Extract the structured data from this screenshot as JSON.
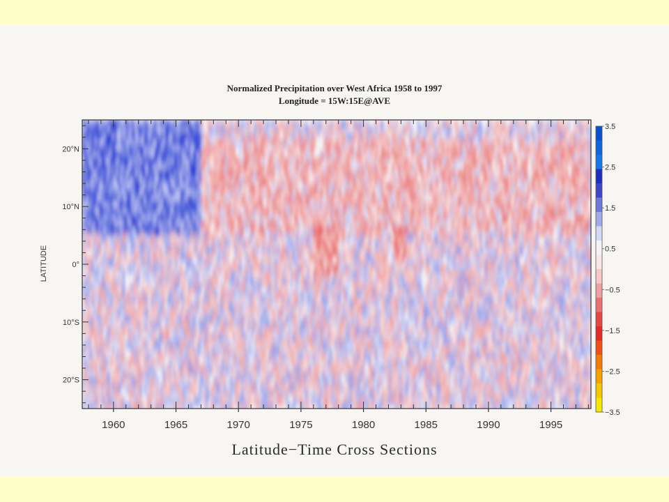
{
  "chart_data": {
    "type": "heatmap",
    "title": "Normalized Precipitation over West Africa 1958 to 1997",
    "subtitle": "Longitude = 15W:15E@AVE",
    "ylabel": "LATITUDE",
    "xlabel": "",
    "xlim": [
      1957.5,
      1998.2
    ],
    "ylim": [
      -25,
      25
    ],
    "x_ticks": [
      {
        "value": 1960,
        "label": "1960"
      },
      {
        "value": 1965,
        "label": "1965"
      },
      {
        "value": 1970,
        "label": "1970"
      },
      {
        "value": 1975,
        "label": "1975"
      },
      {
        "value": 1980,
        "label": "1980"
      },
      {
        "value": 1985,
        "label": "1985"
      },
      {
        "value": 1990,
        "label": "1990"
      },
      {
        "value": 1995,
        "label": "1995"
      }
    ],
    "y_ticks": [
      {
        "value": 20,
        "label": "20°N"
      },
      {
        "value": 10,
        "label": "10°N"
      },
      {
        "value": 0,
        "label": "0°"
      },
      {
        "value": -10,
        "label": "10°S"
      },
      {
        "value": -20,
        "label": "20°S"
      }
    ],
    "colorbar": {
      "range": [
        -3.5,
        3.5
      ],
      "labels": [
        {
          "value": 3.5,
          "label": "3.5"
        },
        {
          "value": 2.5,
          "label": "2.5"
        },
        {
          "value": 1.5,
          "label": "1.5"
        },
        {
          "value": 0.5,
          "label": "0.5"
        },
        {
          "value": -0.5,
          "label": "−0.5"
        },
        {
          "value": -1.5,
          "label": "−1.5"
        },
        {
          "value": -2.5,
          "label": "−2.5"
        },
        {
          "value": -3.5,
          "label": "−3.5"
        }
      ],
      "colors_top_to_bottom": [
        "#0a50d2",
        "#1064dc",
        "#1478e6",
        "#1e2ebe",
        "#3c46c8",
        "#6e78dc",
        "#a0aaec",
        "#d2d8f6",
        "#f4f4f8",
        "#fae6e6",
        "#f6c8c8",
        "#f0a0a0",
        "#ec7070",
        "#e64646",
        "#e62828",
        "#f05014",
        "#f57a0a",
        "#f7a000",
        "#f5c800",
        "#f7e600"
      ]
    },
    "regions": [
      {
        "period": [
          1957.5,
          1967
        ],
        "lat": [
          5,
          25
        ],
        "anomaly": "strong positive (wet)"
      },
      {
        "period": [
          1967,
          1998
        ],
        "lat": [
          5,
          22
        ],
        "anomaly": "weak negative (dry)"
      },
      {
        "period": [
          1976,
          1978
        ],
        "lat": [
          -2,
          7
        ],
        "anomaly": "negative (dry)"
      },
      {
        "period": [
          1982.5,
          1983.5
        ],
        "lat": [
          0,
          7
        ],
        "anomaly": "negative (dry)"
      }
    ]
  },
  "caption": "Latitude−Time Cross Sections"
}
